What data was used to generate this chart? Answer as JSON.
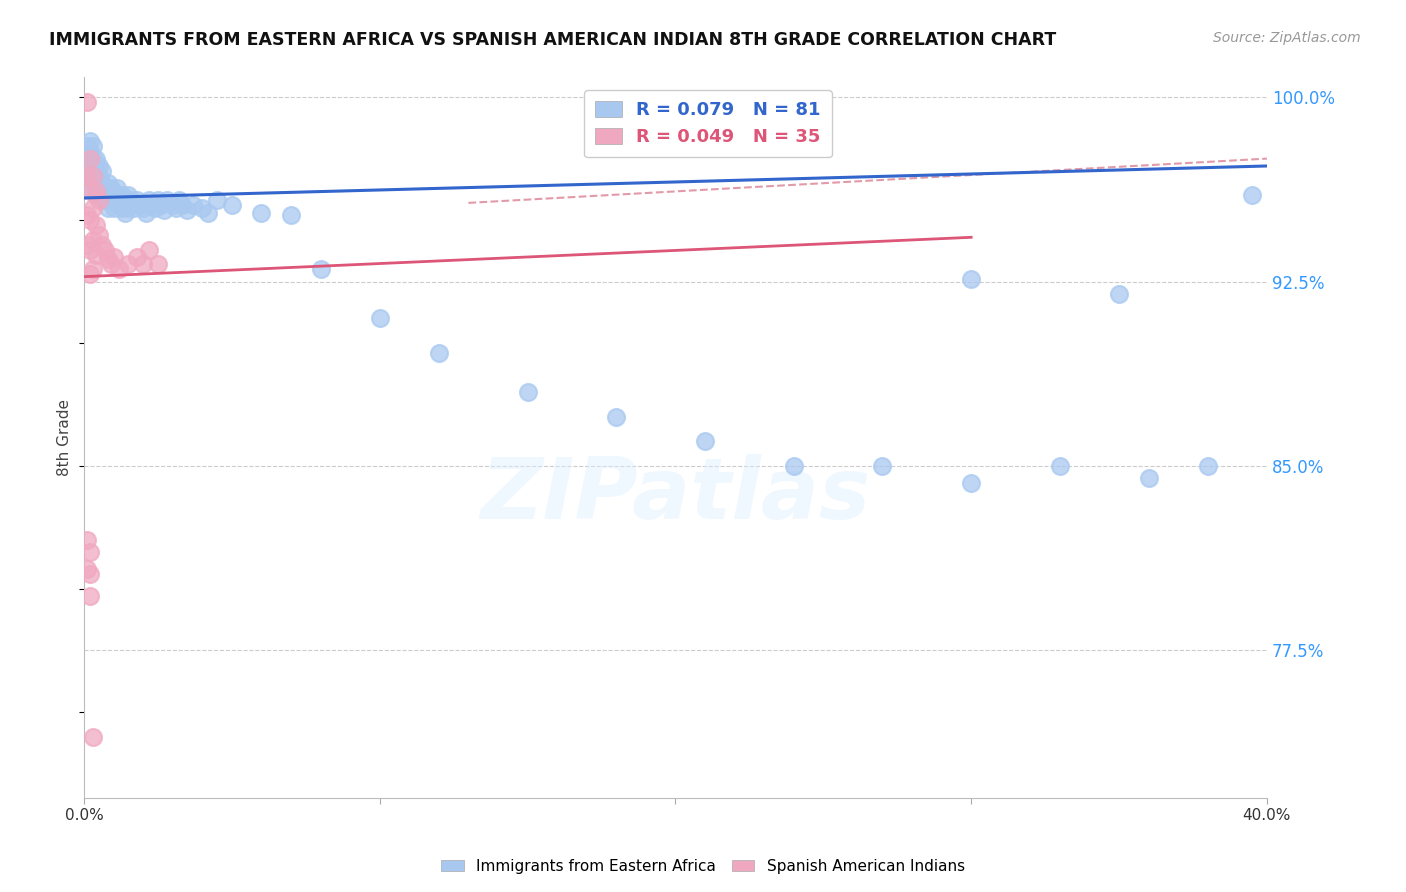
{
  "title": "IMMIGRANTS FROM EASTERN AFRICA VS SPANISH AMERICAN INDIAN 8TH GRADE CORRELATION CHART",
  "source": "Source: ZipAtlas.com",
  "ylabel": "8th Grade",
  "xlim": [
    0.0,
    0.4
  ],
  "ylim": [
    0.715,
    1.008
  ],
  "ytick_positions": [
    0.775,
    0.85,
    0.925,
    1.0
  ],
  "ytick_labels": [
    "77.5%",
    "85.0%",
    "92.5%",
    "100.0%"
  ],
  "blue_R": 0.079,
  "blue_N": 81,
  "pink_R": 0.049,
  "pink_N": 35,
  "blue_color": "#a8c8f0",
  "pink_color": "#f0a8c0",
  "blue_line_color": "#3366cc",
  "pink_line_color": "#dd5577",
  "dash_line_color": "#dd8899",
  "grid_color": "#cccccc",
  "watermark": "ZIPatlas",
  "legend_label_blue": "Immigrants from Eastern Africa",
  "legend_label_pink": "Spanish American Indians",
  "blue_scatter_x": [
    0.001,
    0.001,
    0.001,
    0.002,
    0.002,
    0.002,
    0.002,
    0.002,
    0.003,
    0.003,
    0.003,
    0.003,
    0.004,
    0.004,
    0.004,
    0.004,
    0.005,
    0.005,
    0.005,
    0.006,
    0.006,
    0.006,
    0.007,
    0.007,
    0.008,
    0.008,
    0.008,
    0.009,
    0.009,
    0.01,
    0.01,
    0.011,
    0.011,
    0.012,
    0.012,
    0.013,
    0.013,
    0.014,
    0.014,
    0.015,
    0.015,
    0.016,
    0.017,
    0.018,
    0.019,
    0.02,
    0.021,
    0.022,
    0.023,
    0.024,
    0.025,
    0.026,
    0.027,
    0.028,
    0.03,
    0.031,
    0.032,
    0.033,
    0.035,
    0.037,
    0.04,
    0.042,
    0.045,
    0.05,
    0.06,
    0.07,
    0.08,
    0.1,
    0.12,
    0.15,
    0.18,
    0.21,
    0.24,
    0.27,
    0.3,
    0.33,
    0.36,
    0.38,
    0.395,
    0.3,
    0.35
  ],
  "blue_scatter_y": [
    0.97,
    0.975,
    0.98,
    0.963,
    0.968,
    0.972,
    0.978,
    0.982,
    0.965,
    0.97,
    0.975,
    0.98,
    0.96,
    0.965,
    0.97,
    0.975,
    0.963,
    0.968,
    0.972,
    0.96,
    0.965,
    0.97,
    0.958,
    0.963,
    0.955,
    0.96,
    0.965,
    0.958,
    0.963,
    0.955,
    0.96,
    0.958,
    0.963,
    0.956,
    0.96,
    0.955,
    0.96,
    0.953,
    0.957,
    0.955,
    0.96,
    0.958,
    0.955,
    0.958,
    0.956,
    0.955,
    0.953,
    0.958,
    0.956,
    0.955,
    0.958,
    0.956,
    0.954,
    0.958,
    0.956,
    0.955,
    0.958,
    0.956,
    0.954,
    0.956,
    0.955,
    0.953,
    0.958,
    0.956,
    0.953,
    0.952,
    0.93,
    0.91,
    0.896,
    0.88,
    0.87,
    0.86,
    0.85,
    0.85,
    0.843,
    0.85,
    0.845,
    0.85,
    0.96,
    0.926,
    0.92
  ],
  "pink_scatter_x": [
    0.001,
    0.001,
    0.001,
    0.001,
    0.002,
    0.002,
    0.002,
    0.002,
    0.002,
    0.003,
    0.003,
    0.003,
    0.003,
    0.004,
    0.004,
    0.004,
    0.005,
    0.005,
    0.006,
    0.007,
    0.008,
    0.009,
    0.01,
    0.012,
    0.015,
    0.018,
    0.02,
    0.022,
    0.025,
    0.001,
    0.001,
    0.002,
    0.002,
    0.002,
    0.003
  ],
  "pink_scatter_y": [
    0.998,
    0.968,
    0.952,
    0.94,
    0.975,
    0.962,
    0.95,
    0.938,
    0.928,
    0.968,
    0.955,
    0.942,
    0.93,
    0.962,
    0.948,
    0.936,
    0.958,
    0.944,
    0.94,
    0.938,
    0.934,
    0.932,
    0.935,
    0.93,
    0.932,
    0.935,
    0.932,
    0.938,
    0.932,
    0.82,
    0.808,
    0.815,
    0.806,
    0.797,
    0.74
  ],
  "blue_line_x": [
    0.0,
    0.4
  ],
  "blue_line_y": [
    0.959,
    0.972
  ],
  "pink_line_x": [
    0.0,
    0.3
  ],
  "pink_line_y": [
    0.927,
    0.943
  ],
  "dash_line_x": [
    0.13,
    0.4
  ],
  "dash_line_y": [
    0.957,
    0.975
  ]
}
